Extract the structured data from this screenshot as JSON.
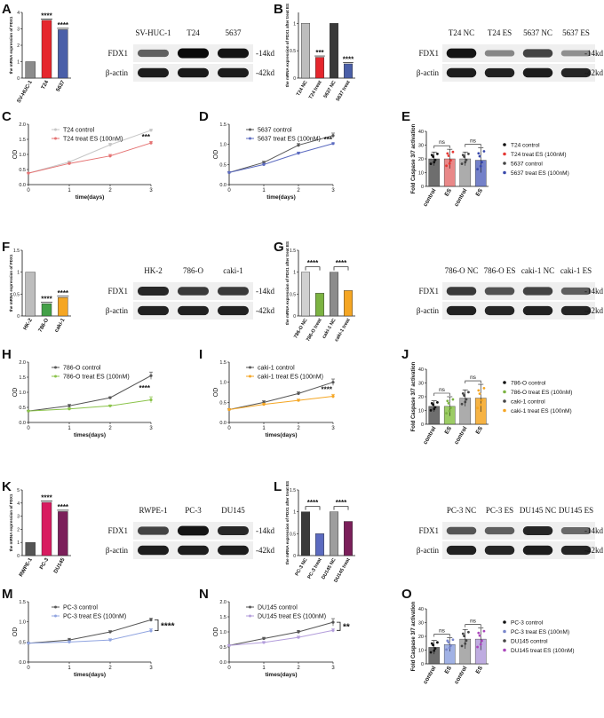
{
  "figure": {
    "rows": [
      {
        "qpcr": {
          "letter": "A",
          "ylabel": "the mRNA expression of FDX1",
          "categories": [
            "SV-HUC-1",
            "T24",
            "5637"
          ],
          "values": [
            1,
            3.52,
            2.95
          ],
          "colors": [
            "#8c8c8c",
            "#e5262d",
            "#4a5fa8"
          ],
          "ymax": 4,
          "sig": [
            "",
            "****",
            "****"
          ],
          "pairs": []
        },
        "blot": {
          "lanes": [
            "SV-HUC-1",
            "T24",
            "5637"
          ],
          "rows": [
            {
              "label": "FDX1",
              "kd": "-14kd",
              "ints": [
                0.55,
                1.0,
                0.95
              ]
            },
            {
              "label": "β-actin",
              "kd": "-42kd",
              "ints": [
                0.9,
                0.92,
                0.9
              ]
            }
          ]
        },
        "treat": {
          "letter": "B",
          "ylabel": "the mRNA expression of FDX1 after treat ES",
          "categories": [
            "T24 NC",
            "T24 treat",
            "5637 NC",
            "5637 treat"
          ],
          "values": [
            1,
            0.38,
            1,
            0.26
          ],
          "colors": [
            "#bdbdbd",
            "#e5262d",
            "#3a3a3a",
            "#4a5fa8"
          ],
          "ymax": 1.2,
          "sig": [
            "",
            "***",
            "",
            "****"
          ],
          "pairs": []
        },
        "tblot": {
          "lanes": [
            "T24 NC",
            "T24 ES",
            "5637 NC",
            "5637 ES"
          ],
          "rows": [
            {
              "label": "FDX1",
              "kd": "-14kd",
              "ints": [
                0.95,
                0.35,
                0.7,
                0.3
              ]
            },
            {
              "label": "β-actin",
              "kd": "-42kd",
              "ints": [
                0.9,
                0.88,
                0.9,
                0.86
              ]
            }
          ]
        },
        "line1": {
          "letter": "C",
          "series": [
            {
              "name": "T24 control",
              "color": "#c6c6c6",
              "values": [
                0.38,
                0.75,
                1.32,
                1.8
              ],
              "err": [
                0.02,
                0.03,
                0.05,
                0.04
              ]
            },
            {
              "name": "T24 treat ES (100nM)",
              "color": "#e57373",
              "values": [
                0.38,
                0.7,
                0.95,
                1.38
              ],
              "err": [
                0.02,
                0.03,
                0.05,
                0.05
              ]
            }
          ],
          "x": [
            0,
            1,
            2,
            3
          ],
          "xlabel": "time(days)",
          "ylabel": "OD",
          "ylim": [
            0,
            2.0
          ],
          "ystep": 0.5,
          "sig": "***",
          "bracket": false
        },
        "line2": {
          "letter": "D",
          "series": [
            {
              "name": "5637 control",
              "color": "#555555",
              "values": [
                0.3,
                0.55,
                0.98,
                1.22
              ],
              "err": [
                0.02,
                0.03,
                0.04,
                0.06
              ]
            },
            {
              "name": "5637 treat ES (100nM)",
              "color": "#5c6bc0",
              "values": [
                0.3,
                0.5,
                0.78,
                1.02
              ],
              "err": [
                0.02,
                0.03,
                0.03,
                0.02
              ]
            }
          ],
          "x": [
            0,
            1,
            2,
            3
          ],
          "xlabel": "time(days)",
          "ylabel": "OD",
          "ylim": [
            0,
            1.5
          ],
          "ystep": 0.5,
          "sig": "***",
          "bracket": false
        },
        "casp": {
          "letter": "E",
          "ylabel": "Fold Caspase 3/7 activation",
          "categories": [
            "control",
            "ES",
            "control",
            "ES"
          ],
          "values": [
            20,
            20,
            20,
            19
          ],
          "err": [
            5,
            7,
            5,
            9
          ],
          "colors": [
            "#555555",
            "#e57373",
            "#9e9e9e",
            "#5c6bc0"
          ],
          "ymax": 40,
          "ysteps": [
            0,
            10,
            20,
            30,
            40
          ],
          "ns": [
            "ns",
            "ns"
          ],
          "legend": [
            "T24 control",
            "T24 treat ES (100nM)",
            "5637 control",
            "5637 treat ES (100nM)"
          ],
          "legendColors": [
            "#111111",
            "#e53935",
            "#444444",
            "#3949ab"
          ]
        }
      },
      {
        "qpcr": {
          "letter": "F",
          "ylabel": "the mRNA expression of FDX1",
          "categories": [
            "HK-2",
            "786-O",
            "caki-1"
          ],
          "values": [
            1,
            0.28,
            0.42
          ],
          "colors": [
            "#bdbdbd",
            "#43a047",
            "#f5a623"
          ],
          "ymax": 1.5,
          "sig": [
            "",
            "****",
            "****"
          ],
          "pairs": []
        },
        "blot": {
          "lanes": [
            "HK-2",
            "786-O",
            "caki-1"
          ],
          "rows": [
            {
              "label": "FDX1",
              "kd": "-14kd",
              "ints": [
                0.85,
                0.75,
                0.75
              ]
            },
            {
              "label": "β-actin",
              "kd": "-42kd",
              "ints": [
                0.88,
                0.88,
                0.88
              ]
            }
          ]
        },
        "treat": {
          "letter": "G",
          "ylabel": "the mRNA expression of FDX1 after treat ES",
          "categories": [
            "786-O NC",
            "786-O treat",
            "caki-1 NC",
            "caki-1 treat"
          ],
          "values": [
            1,
            0.52,
            1,
            0.58
          ],
          "colors": [
            "#d0d0d0",
            "#7cb342",
            "#8c8c8c",
            "#f5a623"
          ],
          "ymax": 1.5,
          "sig": [
            "",
            "",
            "",
            ""
          ],
          "pairs": [
            {
              "from": 0,
              "to": 1,
              "label": "****"
            },
            {
              "from": 2,
              "to": 3,
              "label": "****"
            }
          ]
        },
        "tblot": {
          "lanes": [
            "786-O NC",
            "786-O ES",
            "caki-1 NC",
            "caki-1 ES"
          ],
          "rows": [
            {
              "label": "FDX1",
              "kd": "-14kd",
              "ints": [
                0.75,
                0.62,
                0.7,
                0.55
              ]
            },
            {
              "label": "β-actin",
              "kd": "-42kd",
              "ints": [
                0.88,
                0.86,
                0.88,
                0.86
              ]
            }
          ]
        },
        "line1": {
          "letter": "H",
          "series": [
            {
              "name": "786-O control",
              "color": "#555555",
              "values": [
                0.38,
                0.55,
                0.82,
                1.55
              ],
              "err": [
                0.02,
                0.05,
                0.03,
                0.12
              ]
            },
            {
              "name": "786-O treat ES (100nM)",
              "color": "#8bc34a",
              "values": [
                0.38,
                0.45,
                0.55,
                0.75
              ],
              "err": [
                0.02,
                0.03,
                0.03,
                0.1
              ]
            }
          ],
          "x": [
            0,
            1,
            2,
            3
          ],
          "xlabel": "times(days)",
          "ylabel": "OD",
          "ylim": [
            0,
            2.0
          ],
          "ystep": 0.5,
          "sig": "****",
          "bracket": false
        },
        "line2": {
          "letter": "I",
          "series": [
            {
              "name": "caki-1 control",
              "color": "#555555",
              "values": [
                0.32,
                0.5,
                0.72,
                1.0
              ],
              "err": [
                0.02,
                0.04,
                0.04,
                0.08
              ]
            },
            {
              "name": "caki-1 treat ES (100nM)",
              "color": "#f5a623",
              "values": [
                0.32,
                0.45,
                0.55,
                0.65
              ],
              "err": [
                0.02,
                0.03,
                0.03,
                0.05
              ]
            }
          ],
          "x": [
            0,
            1,
            2,
            3
          ],
          "xlabel": "times(days)",
          "ylabel": "OD",
          "ylim": [
            0,
            1.5
          ],
          "ystep": 0.5,
          "sig": "****",
          "bracket": false
        },
        "casp": {
          "letter": "J",
          "ylabel": "Fold Caspase 3/7 activation",
          "categories": [
            "control",
            "ES",
            "control",
            "ES"
          ],
          "values": [
            13,
            13,
            19,
            19
          ],
          "err": [
            4,
            7,
            6,
            10
          ],
          "colors": [
            "#555555",
            "#8bc34a",
            "#9e9e9e",
            "#f5a623"
          ],
          "ymax": 40,
          "ysteps": [
            0,
            10,
            20,
            30,
            40
          ],
          "ns": [
            "ns",
            "ns"
          ],
          "legend": [
            "786-O control",
            "786-O treat ES (100nM)",
            "caki-1 control",
            "caki-1 treat ES (100nM)"
          ],
          "legendColors": [
            "#111111",
            "#7cb342",
            "#444444",
            "#f5a623"
          ]
        }
      },
      {
        "qpcr": {
          "letter": "K",
          "ylabel": "the mRNA expression of FDX1",
          "categories": [
            "RWPE-1",
            "PC-3",
            "DU145"
          ],
          "values": [
            1,
            4.05,
            3.35
          ],
          "colors": [
            "#555555",
            "#d81b60",
            "#7b1f5a"
          ],
          "ymax": 5,
          "sig": [
            "",
            "****",
            "****"
          ],
          "pairs": []
        },
        "blot": {
          "lanes": [
            "RWPE-1",
            "PC-3",
            "DU145"
          ],
          "rows": [
            {
              "label": "FDX1",
              "kd": "-14kd",
              "ints": [
                0.7,
                0.95,
                0.85
              ]
            },
            {
              "label": "β-actin",
              "kd": "-42kd",
              "ints": [
                0.9,
                0.9,
                0.9
              ]
            }
          ]
        },
        "treat": {
          "letter": "L",
          "ylabel": "the mRNA expression of FDX1 after treat ES",
          "categories": [
            "PC-3 NC",
            "PC-3 treat",
            "DU145 NC",
            "DU145 treat"
          ],
          "values": [
            1,
            0.5,
            1,
            0.78
          ],
          "colors": [
            "#3a3a3a",
            "#5c6bc0",
            "#9e9e9e",
            "#7b1f5a"
          ],
          "ymax": 1.5,
          "sig": [
            "",
            "",
            "",
            ""
          ],
          "pairs": [
            {
              "from": 0,
              "to": 1,
              "label": "****"
            },
            {
              "from": 2,
              "to": 3,
              "label": "****"
            }
          ]
        },
        "tblot": {
          "lanes": [
            "PC-3 NC",
            "PC-3 ES",
            "DU145 NC",
            "DU145 ES"
          ],
          "rows": [
            {
              "label": "FDX1",
              "kd": "-14kd",
              "ints": [
                0.6,
                0.55,
                0.85,
                0.5
              ]
            },
            {
              "label": "β-actin",
              "kd": "-42kd",
              "ints": [
                0.88,
                0.86,
                0.9,
                0.86
              ]
            }
          ]
        },
        "line1": {
          "letter": "M",
          "series": [
            {
              "name": "PC-3 control",
              "color": "#555555",
              "values": [
                0.47,
                0.55,
                0.75,
                1.05
              ],
              "err": [
                0.02,
                0.04,
                0.03,
                0.04
              ]
            },
            {
              "name": "PC-3 treat ES (100nM)",
              "color": "#90a4e0",
              "values": [
                0.47,
                0.5,
                0.55,
                0.78
              ],
              "err": [
                0.02,
                0.03,
                0.03,
                0.05
              ]
            }
          ],
          "x": [
            0,
            1,
            2,
            3
          ],
          "xlabel": "times(days)",
          "ylabel": "OD",
          "ylim": [
            0,
            1.5
          ],
          "ystep": 0.5,
          "sig": "****",
          "bracket": true
        },
        "line2": {
          "letter": "N",
          "series": [
            {
              "name": "DU145 control",
              "color": "#555555",
              "values": [
                0.55,
                0.78,
                1.0,
                1.32
              ],
              "err": [
                0.02,
                0.04,
                0.05,
                0.12
              ]
            },
            {
              "name": "DU145 treat ES (100nM)",
              "color": "#b39ddb",
              "values": [
                0.55,
                0.65,
                0.82,
                1.05
              ],
              "err": [
                0.02,
                0.03,
                0.04,
                0.06
              ]
            }
          ],
          "x": [
            0,
            1,
            2,
            3
          ],
          "xlabel": "times(days)",
          "ylabel": "OD",
          "ylim": [
            0,
            2.0
          ],
          "ystep": 0.5,
          "sig": "**",
          "bracket": true
        },
        "casp": {
          "letter": "O",
          "ylabel": "Fold Caspase 3/7 activation",
          "categories": [
            "control",
            "ES",
            "control",
            "ES"
          ],
          "values": [
            12,
            14,
            18,
            18
          ],
          "err": [
            5,
            5,
            7,
            8
          ],
          "colors": [
            "#555555",
            "#90a4e0",
            "#9e9e9e",
            "#b39ddb"
          ],
          "ymax": 40,
          "ysteps": [
            0,
            10,
            20,
            30,
            40
          ],
          "ns": [
            "ns",
            "ns"
          ],
          "legend": [
            "PC-3 control",
            "PC-3 treat ES (100nM)",
            "DU145 control",
            "DU145 treat ES (100nM)"
          ],
          "legendColors": [
            "#111111",
            "#7986cb",
            "#444444",
            "#ab47bc"
          ]
        }
      }
    ]
  }
}
